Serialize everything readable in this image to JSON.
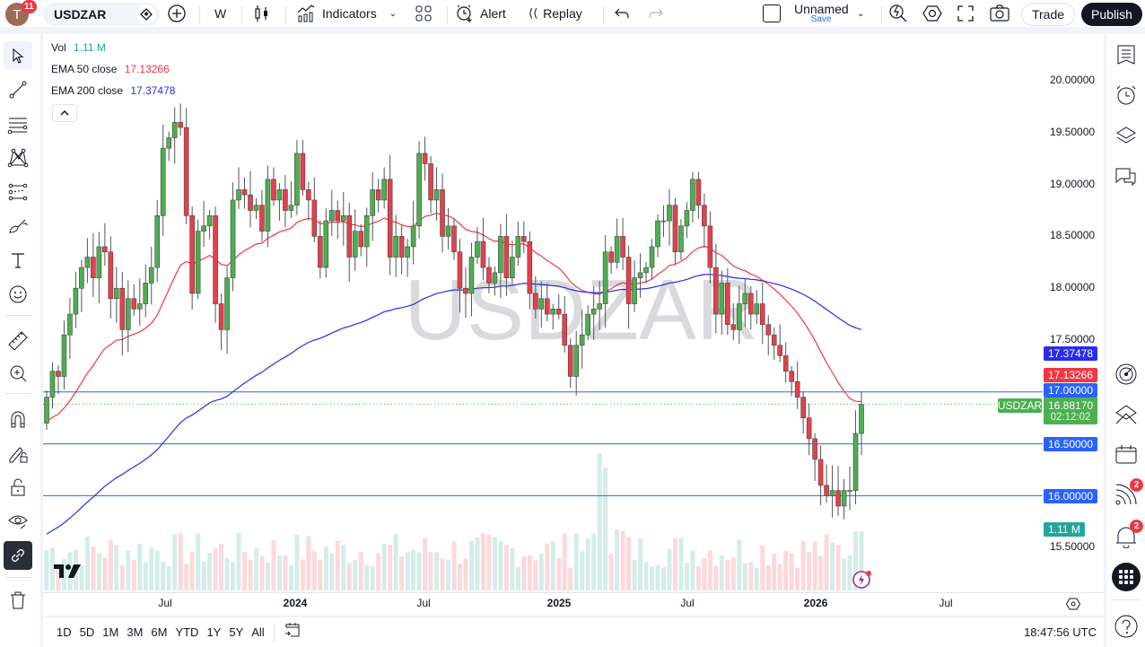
{
  "header": {
    "avatar_letter": "T",
    "notifications": "11",
    "symbol": "USDZAR",
    "interval": "W",
    "indicators_label": "Indicators",
    "alert_label": "Alert",
    "replay_label": "Replay",
    "layout_name": "Unnamed",
    "save_label": "Save",
    "trade_label": "Trade",
    "publish_label": "Publish"
  },
  "legend": {
    "vol_label": "Vol",
    "vol_value": "1.11 M",
    "ema50_label": "EMA 50 close",
    "ema50_value": "17.13266",
    "ema200_label": "EMA 200 close",
    "ema200_value": "17.37478"
  },
  "watermark": "USDZAR",
  "price_axis": {
    "ticks": [
      "20.00000",
      "19.50000",
      "19.00000",
      "18.50000",
      "18.00000",
      "17.50000",
      "15.50000"
    ],
    "labels": {
      "ema200": "17.37478",
      "ema50": "17.13266",
      "line_17": "17.00000",
      "last_price": "16.88170",
      "countdown": "02:12:02",
      "symbol_tag": "USDZAR",
      "line_16_5": "16.50000",
      "line_16": "16.00000",
      "volume": "1.11 M"
    }
  },
  "time_axis": {
    "ticks": [
      "Jul",
      "2024",
      "Jul",
      "2025",
      "Jul",
      "2026",
      "Jul"
    ]
  },
  "bottom": {
    "ranges": [
      "1D",
      "5D",
      "1M",
      "3M",
      "6M",
      "YTD",
      "1Y",
      "5Y",
      "All"
    ],
    "clock": "18:47:56 UTC"
  },
  "right_badges": {
    "feed": "2",
    "notifications": "2"
  },
  "colors": {
    "up": "#4caf50",
    "down": "#e5404b",
    "ema50": "#f23645",
    "ema200": "#2a2af0",
    "hline": "#2962ff",
    "vol_up": "#d4ede9",
    "vol_down": "#fdd9db"
  },
  "chart_data": {
    "type": "candlestick",
    "symbol": "USDZAR",
    "interval": "W",
    "ylim": [
      15.3,
      20.1
    ],
    "hlines": [
      17.0,
      16.5,
      16.0
    ],
    "last_price": 16.8817,
    "ema50_last": 17.13266,
    "ema200_last": 17.37478,
    "volume_last": "1.11 M",
    "x_ticks": [
      "Jul",
      "2024",
      "Jul",
      "2025",
      "Jul",
      "2026",
      "Jul"
    ],
    "candles_close": [
      16.95,
      17.2,
      17.15,
      17.55,
      17.75,
      18.0,
      18.2,
      18.3,
      18.1,
      18.4,
      18.35,
      17.9,
      18.0,
      17.6,
      17.9,
      17.8,
      17.85,
      18.05,
      18.2,
      18.7,
      19.35,
      19.45,
      19.6,
      19.55,
      18.7,
      17.95,
      18.55,
      18.6,
      18.7,
      17.85,
      17.6,
      18.1,
      18.85,
      18.95,
      18.9,
      18.75,
      18.8,
      18.55,
      19.05,
      18.85,
      18.95,
      18.75,
      18.8,
      19.3,
      18.95,
      18.85,
      18.5,
      18.2,
      18.65,
      18.75,
      18.65,
      18.7,
      18.3,
      18.55,
      18.4,
      18.7,
      18.95,
      18.85,
      19.05,
      18.3,
      18.5,
      18.3,
      18.4,
      18.6,
      19.3,
      19.2,
      18.85,
      18.95,
      18.5,
      18.6,
      18.35,
      18.0,
      17.95,
      18.3,
      18.45,
      18.2,
      18.05,
      18.15,
      18.5,
      18.1,
      18.3,
      18.5,
      18.45,
      17.95,
      17.8,
      17.9,
      17.75,
      17.8,
      17.75,
      17.45,
      17.15,
      17.45,
      17.55,
      17.75,
      17.8,
      17.85,
      18.35,
      18.25,
      18.5,
      18.3,
      17.85,
      18.1,
      18.15,
      18.2,
      18.4,
      18.65,
      18.65,
      18.8,
      18.35,
      18.6,
      18.75,
      19.05,
      18.8,
      18.6,
      18.2,
      17.75,
      18.05,
      17.65,
      17.6,
      17.85,
      17.95,
      17.75,
      17.85,
      17.65,
      17.55,
      17.45,
      17.35,
      17.2,
      17.1,
      16.95,
      16.75,
      16.55,
      16.35,
      16.1,
      16.0,
      16.05,
      15.9,
      16.05,
      16.05,
      16.6,
      16.88
    ]
  }
}
